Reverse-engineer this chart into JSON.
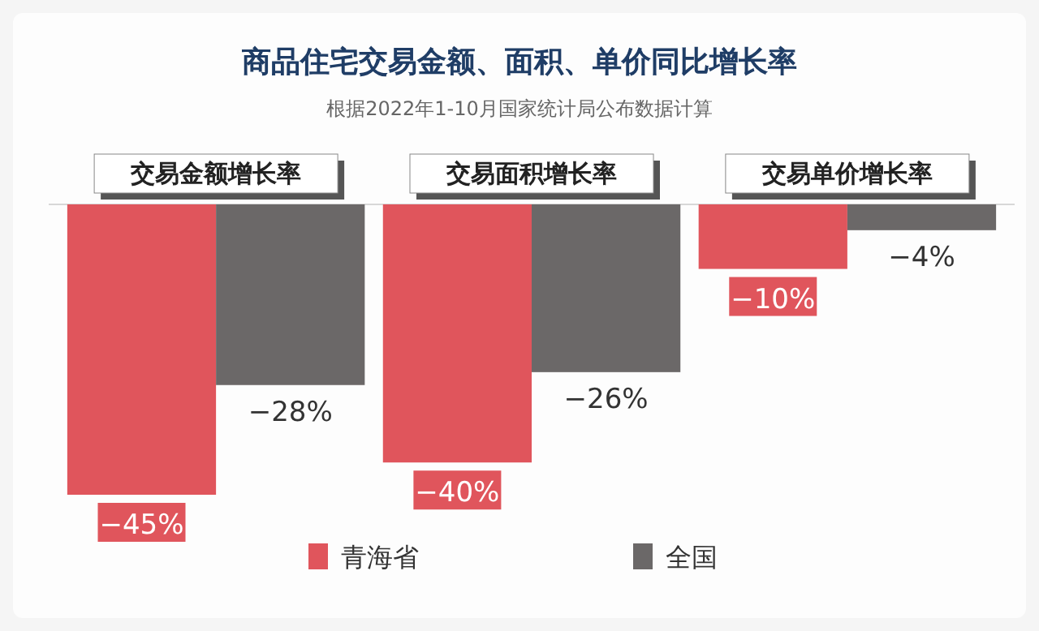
{
  "chart_data": {
    "type": "bar",
    "title": "商品住宅交易金额、面积、单价同比增长率",
    "subtitle": "根据2022年1-10月国家统计局公布数据计算",
    "categories": [
      "交易金额增长率",
      "交易面积增长率",
      "交易单价增长率"
    ],
    "series": [
      {
        "name": "青海省",
        "color": "#e0555c",
        "values": [
          -45,
          -40,
          -10
        ],
        "value_labels": [
          "−45%",
          "−40%",
          "−10%"
        ]
      },
      {
        "name": "全国",
        "color": "#6b6868",
        "values": [
          -28,
          -26,
          -4
        ],
        "value_labels": [
          "−28%",
          "−26%",
          "−4%"
        ]
      }
    ],
    "legend": "bottom"
  }
}
